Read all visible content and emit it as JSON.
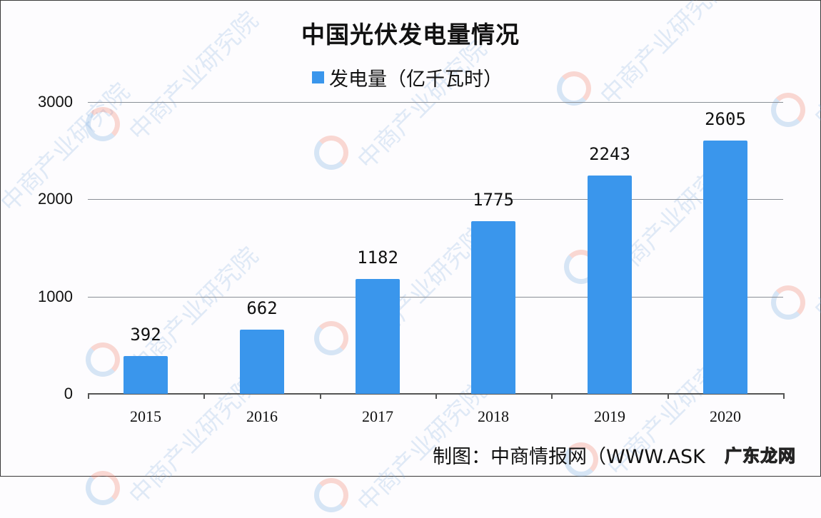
{
  "chart_data": {
    "type": "bar",
    "title": "中国光伏发电量情况",
    "legend": [
      "发电量（亿千瓦时）"
    ],
    "legend_position": "top",
    "categories": [
      "2015",
      "2016",
      "2017",
      "2018",
      "2019",
      "2020"
    ],
    "series": [
      {
        "name": "发电量（亿千瓦时）",
        "values": [
          392,
          662,
          1182,
          1775,
          2243,
          2605
        ],
        "color": "#3a96ec"
      }
    ],
    "xlabel": "",
    "ylabel": "",
    "ylim": [
      0,
      3000
    ],
    "yticks": [
      "0",
      "1000",
      "2000",
      "3000"
    ],
    "grid": true,
    "data_labels": true
  },
  "source": {
    "text": "制图：中商情报网（WWW.ASK",
    "badge": "广东龙网"
  },
  "watermark": {
    "text": "中商产业研究院"
  }
}
